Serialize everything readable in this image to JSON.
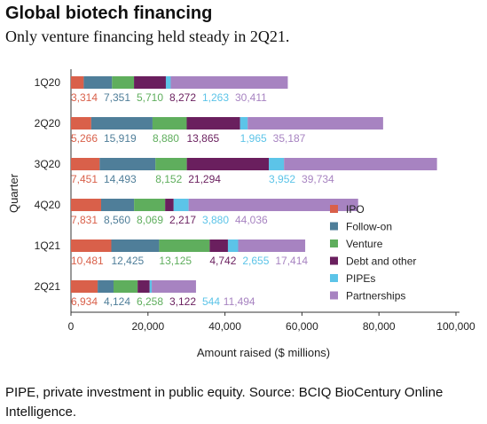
{
  "title": "Global biotech financing",
  "subtitle": "Only venture financing held steady in 2Q21.",
  "footnote": "PIPE, private investment in public equity. Source: BCIQ BioCentury Online Intelligence.",
  "chart_data": {
    "type": "bar",
    "orientation": "horizontal",
    "stacked": true,
    "xlabel": "Amount raised ($ millions)",
    "ylabel": "Quarter",
    "xlim": [
      0,
      100000
    ],
    "xticks": [
      "0",
      "20,000",
      "40,000",
      "60,000",
      "80,000",
      "100,000"
    ],
    "categories": [
      "1Q20",
      "2Q20",
      "3Q20",
      "4Q20",
      "1Q21",
      "2Q21"
    ],
    "legend_position": "right",
    "grid": false,
    "series": [
      {
        "name": "IPO",
        "color": "#d9604a",
        "values": [
          3314,
          5266,
          7451,
          7831,
          10481,
          6934
        ],
        "labels": [
          "3,314",
          "5,266",
          "7,451",
          "7,831",
          "10,481",
          "6,934"
        ]
      },
      {
        "name": "Follow-on",
        "color": "#4f7e99",
        "values": [
          7351,
          15919,
          14493,
          8560,
          12425,
          4124
        ],
        "labels": [
          "7,351",
          "15,919",
          "14,493",
          "8,560",
          "12,425",
          "4,124"
        ]
      },
      {
        "name": "Venture",
        "color": "#5fae5d",
        "values": [
          5710,
          8880,
          8152,
          8069,
          13125,
          6258
        ],
        "labels": [
          "5,710",
          "8,880",
          "8,152",
          "8,069",
          "13,125",
          "6,258"
        ]
      },
      {
        "name": "Debt and other",
        "color": "#6a1f5e",
        "values": [
          8272,
          13865,
          21294,
          2217,
          4742,
          3122
        ],
        "labels": [
          "8,272",
          "13,865",
          "21,294",
          "2,217",
          "4,742",
          "3,122"
        ]
      },
      {
        "name": "PIPEs",
        "color": "#5cc4e8",
        "values": [
          1263,
          1965,
          3952,
          3880,
          2655,
          544
        ],
        "labels": [
          "1,263",
          "1,965",
          "3,952",
          "3,880",
          "2,655",
          "544"
        ]
      },
      {
        "name": "Partnerships",
        "color": "#a783c1",
        "values": [
          30411,
          35187,
          39734,
          44036,
          17414,
          11494
        ],
        "labels": [
          "30,411",
          "35,187",
          "39,734",
          "44,036",
          "17,414",
          "11,494"
        ]
      }
    ]
  }
}
